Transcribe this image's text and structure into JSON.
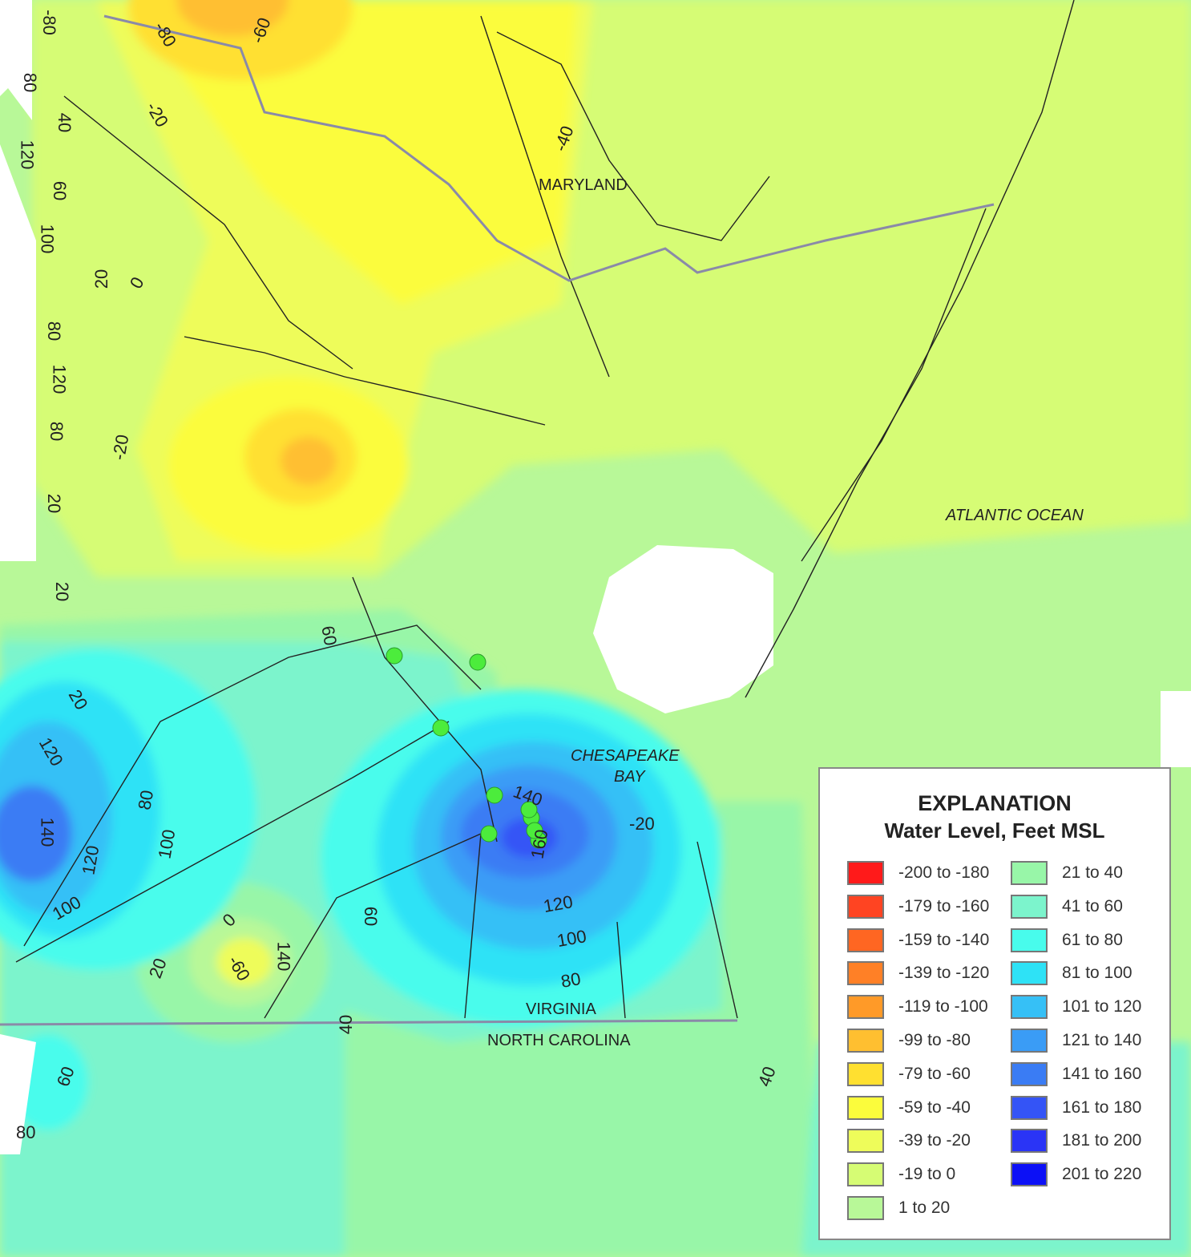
{
  "map": {
    "places": [
      "MARYLAND",
      "ATLANTIC OCEAN",
      "CHESAPEAKE",
      "BAY",
      "VIRGINIA",
      "NORTH CAROLINA"
    ],
    "contour_labels": [
      "-80",
      "-60",
      "-80",
      "-20",
      "-40",
      "80",
      "40",
      "120",
      "60",
      "100",
      "20",
      "0",
      "80",
      "120",
      "80",
      "-20",
      "20",
      "20",
      "60",
      "20",
      "120",
      "100",
      "80",
      "140",
      "120",
      "100",
      "0",
      "-60",
      "140",
      "20",
      "60",
      "40",
      "140",
      "160",
      "-20",
      "120",
      "100",
      "80",
      "40",
      "60",
      "80"
    ],
    "well_markers": 9,
    "colors": {
      "well_marker": "#4cec3c",
      "state_border": "#8a8aa8"
    }
  },
  "legend": {
    "title": "EXPLANATION",
    "subtitle": "Water Level, Feet MSL",
    "items": [
      {
        "label": "-200 to -180",
        "color": "#ff1a1a"
      },
      {
        "label": "-179 to -160",
        "color": "#ff4422"
      },
      {
        "label": "-159 to -140",
        "color": "#ff6622"
      },
      {
        "label": "-139 to -120",
        "color": "#ff8026"
      },
      {
        "label": "-119 to -100",
        "color": "#ff9a28"
      },
      {
        "label": "-99 to -80",
        "color": "#ffbf30"
      },
      {
        "label": "-79 to -60",
        "color": "#ffe030"
      },
      {
        "label": "-59 to -40",
        "color": "#fbfc3c"
      },
      {
        "label": "-39 to -20",
        "color": "#eefc5a"
      },
      {
        "label": "-19 to 0",
        "color": "#d6fc74"
      },
      {
        "label": "1 to 20",
        "color": "#b8f898"
      },
      {
        "label": "21 to 40",
        "color": "#98f6a8"
      },
      {
        "label": "41 to 60",
        "color": "#7cf4cc"
      },
      {
        "label": "61 to 80",
        "color": "#48fcec"
      },
      {
        "label": "81 to 100",
        "color": "#2ee2f6"
      },
      {
        "label": "101 to 120",
        "color": "#36c0f6"
      },
      {
        "label": "121 to 140",
        "color": "#3a9cf6"
      },
      {
        "label": "141 to 160",
        "color": "#3a7cf4"
      },
      {
        "label": "161 to 180",
        "color": "#3454f6"
      },
      {
        "label": "181 to 200",
        "color": "#2a34f6"
      },
      {
        "label": "201 to 220",
        "color": "#0c10f6"
      }
    ]
  }
}
